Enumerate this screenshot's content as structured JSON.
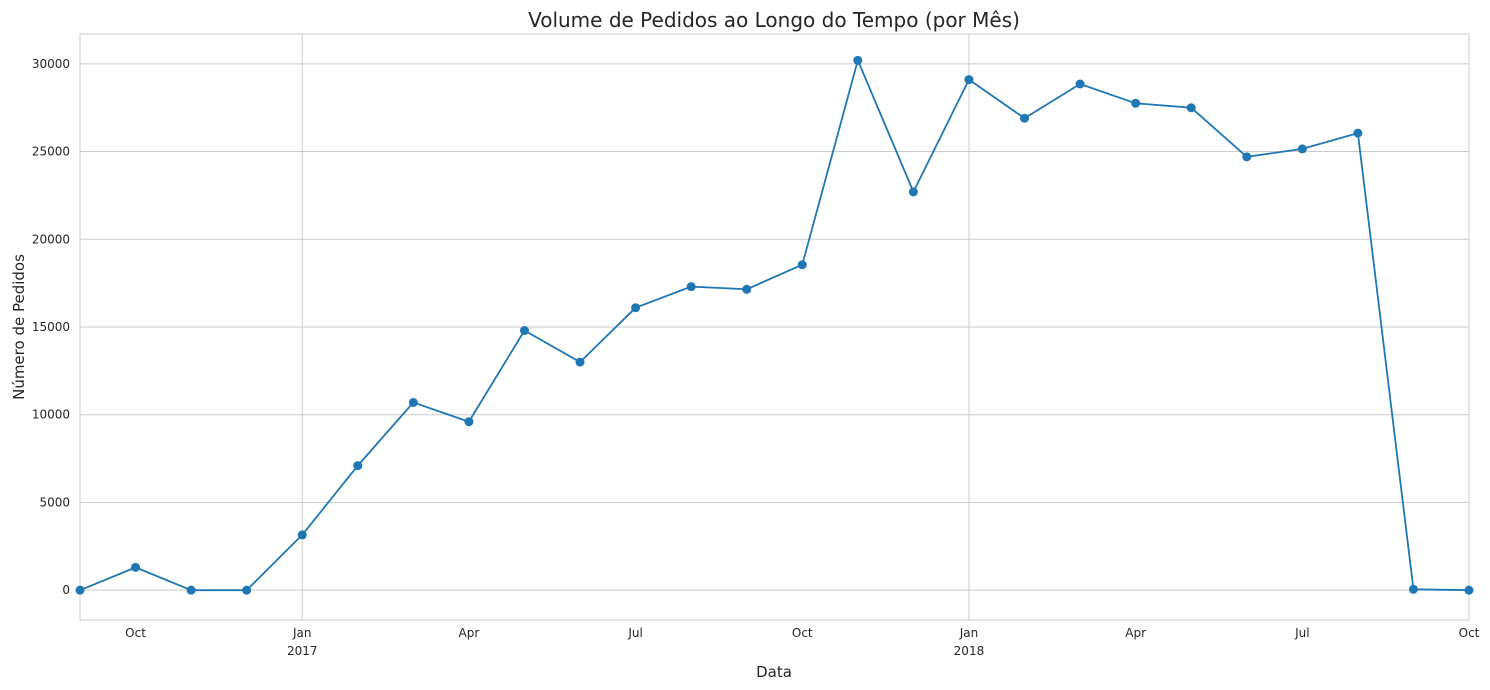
{
  "chart_data": {
    "type": "line",
    "title": "Volume de Pedidos ao Longo do Tempo (por Mês)",
    "xlabel": "Data",
    "ylabel": "Número de Pedidos",
    "grid": true,
    "marker": "circle",
    "x_range": [
      "2016-09",
      "2018-10"
    ],
    "ylim": [
      -1700,
      31700
    ],
    "x_ticks": [
      {
        "x": "2016-10",
        "label": "Oct",
        "sublabel": ""
      },
      {
        "x": "2017-01",
        "label": "Jan",
        "sublabel": "2017"
      },
      {
        "x": "2017-04",
        "label": "Apr",
        "sublabel": ""
      },
      {
        "x": "2017-07",
        "label": "Jul",
        "sublabel": ""
      },
      {
        "x": "2017-10",
        "label": "Oct",
        "sublabel": ""
      },
      {
        "x": "2018-01",
        "label": "Jan",
        "sublabel": "2018"
      },
      {
        "x": "2018-04",
        "label": "Apr",
        "sublabel": ""
      },
      {
        "x": "2018-07",
        "label": "Jul",
        "sublabel": ""
      },
      {
        "x": "2018-10",
        "label": "Oct",
        "sublabel": ""
      }
    ],
    "y_ticks": [
      0,
      5000,
      10000,
      15000,
      20000,
      25000,
      30000
    ],
    "series": [
      {
        "color": "#1f77b4",
        "x": [
          "2016-09",
          "2016-10",
          "2016-11",
          "2016-12",
          "2017-01",
          "2017-02",
          "2017-03",
          "2017-04",
          "2017-05",
          "2017-06",
          "2017-07",
          "2017-08",
          "2017-09",
          "2017-10",
          "2017-11",
          "2017-12",
          "2018-01",
          "2018-02",
          "2018-03",
          "2018-04",
          "2018-05",
          "2018-06",
          "2018-07",
          "2018-08",
          "2018-09",
          "2018-10"
        ],
        "values": [
          0,
          1300,
          0,
          0,
          3150,
          7100,
          10700,
          9600,
          14800,
          13000,
          16100,
          17300,
          17150,
          18550,
          30200,
          22700,
          29100,
          26900,
          28850,
          27750,
          27500,
          24700,
          25150,
          26050,
          50,
          0
        ]
      }
    ]
  }
}
